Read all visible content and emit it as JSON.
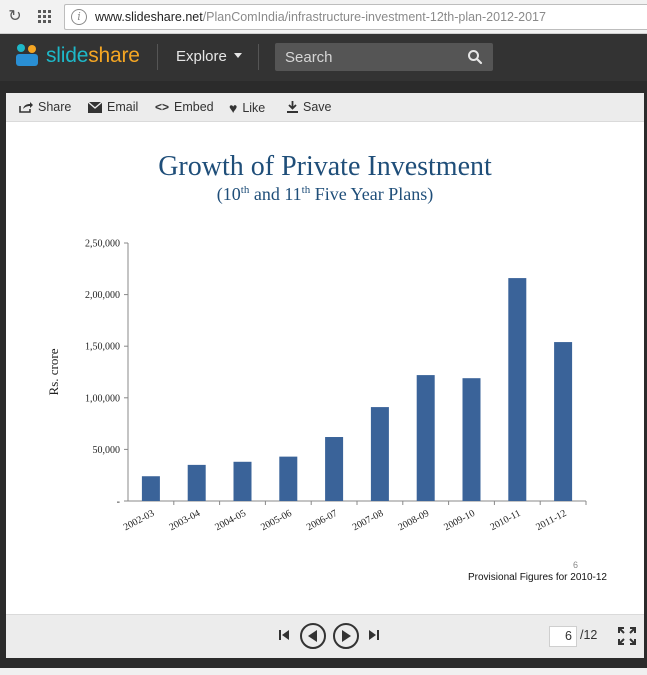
{
  "browser": {
    "url_host": "www.slideshare.net",
    "url_path": "/PlanComIndia/infrastructure-investment-12th-plan-2012-2017"
  },
  "header": {
    "logo_part1": "slide",
    "logo_part2": "share",
    "explore_label": "Explore",
    "search_placeholder": "Search"
  },
  "toolbar": {
    "share": "Share",
    "email": "Email",
    "embed": "Embed",
    "like": "Like",
    "save": "Save"
  },
  "slide": {
    "title": "Growth of Private Investment",
    "subtitle_a": "(10",
    "subtitle_sup1": "th",
    "subtitle_b": " and 11",
    "subtitle_sup2": "th",
    "subtitle_c": " Five Year Plans)",
    "slide_number": "6",
    "footnote": "Provisional Figures for 2010-12"
  },
  "chart_data": {
    "type": "bar",
    "title": "",
    "xlabel": "",
    "ylabel": "Rs. crore",
    "categories": [
      "2002-03",
      "2003-04",
      "2004-05",
      "2005-06",
      "2006-07",
      "2007-08",
      "2008-09",
      "2009-10",
      "2010-11",
      "2011-12"
    ],
    "values": [
      24000,
      35000,
      38000,
      43000,
      62000,
      91000,
      122000,
      119000,
      216000,
      154000
    ],
    "ylim": [
      0,
      250000
    ],
    "yticks": [
      "-",
      "50,000",
      "1,00,000",
      "1,50,000",
      "2,00,000",
      "2,50,000"
    ],
    "bar_color": "#3a6399",
    "grid": false
  },
  "controls": {
    "current_page": "6",
    "total_pages": "/12"
  }
}
